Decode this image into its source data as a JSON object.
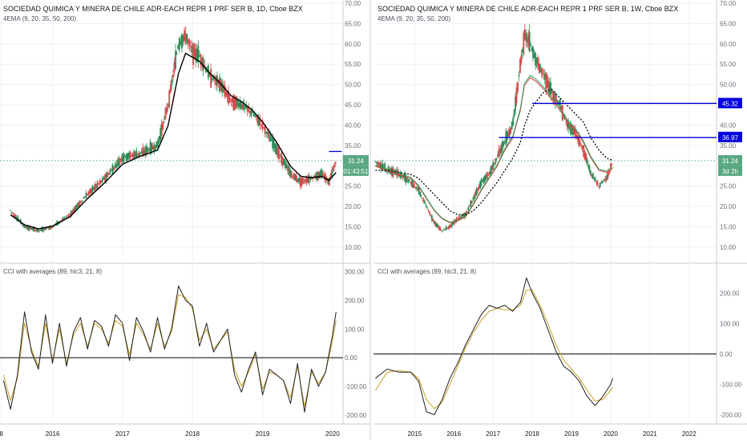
{
  "colors": {
    "bg": "#ffffff",
    "grid": "#eef0f3",
    "axis_text": "#6a6d78",
    "divider": "#c9ccd3",
    "candle_up": "#2e8b57",
    "candle_down": "#d14b4b",
    "ema_black": "#000000",
    "ema_red": "#e0433f",
    "ema_green": "#2aa05a",
    "ema_orange": "#f0a030",
    "cci_main": "#222222",
    "cci_avg": "#c9a227",
    "level_blue": "#0000dd",
    "label_green": "#5aa883",
    "zero_line": "#000000"
  },
  "panes": {
    "left": {
      "title": "SOCIEDAD QUIMICA Y MINERA DE CHILE ADR-EACH REPR 1 PRF SER B, 1D, Cboe BZX",
      "indicator": "4EMA (9, 20, 35, 50, 200)",
      "cci_title": "CCI with averages (89, hlc3, 21, 8)",
      "price_label": "31.24",
      "timer_label": "01:43:51"
    },
    "right": {
      "title": "SOCIEDAD QUIMICA Y MINERA DE CHILE ADR-EACH REPR 1 PRF SER B, 1W, Cboe BZX",
      "indicator": "4EMA (9, 20, 35, 50, 200)",
      "cci_title": "CCI with averages (89, hlc3, 21, 8)",
      "price_label": "31.24",
      "timer_label": "3d 2h",
      "level_labels": [
        "45.32",
        "36.97"
      ]
    }
  },
  "axes": {
    "price_ticks": [
      "10.00",
      "15.00",
      "20.00",
      "25.00",
      "30.00",
      "35.00",
      "40.00",
      "45.00",
      "50.00",
      "55.00",
      "60.00",
      "65.00",
      "70.00"
    ],
    "cci_ticks": [
      "-200.00",
      "-100.00",
      "0.00",
      "100.00",
      "200.00",
      "300.00"
    ],
    "cci_ticks_right": [
      "-200.00",
      "-100.00",
      "0.00",
      "100.00",
      "200.00"
    ],
    "left_x_ticks": [
      "8",
      "2016",
      "2017",
      "2018",
      "2019",
      "2020"
    ],
    "right_x_ticks": [
      "2015",
      "2016",
      "2017",
      "2018",
      "2019",
      "2020",
      "2021",
      "2022"
    ]
  },
  "chart_data": [
    {
      "type": "line",
      "pane": "left-price",
      "title": "SOCIEDAD QUIMICA Y MINERA DE CHILE ADR-EACH REPR 1 PRF SER B, 1D, Cboe BZX",
      "xlabel": "",
      "ylabel": "",
      "ylim": [
        7,
        70
      ],
      "x": [
        2015.4,
        2015.6,
        2015.8,
        2016.0,
        2016.25,
        2016.5,
        2016.75,
        2017.0,
        2017.25,
        2017.5,
        2017.65,
        2017.8,
        2017.9,
        2018.0,
        2018.1,
        2018.25,
        2018.4,
        2018.55,
        2018.7,
        2018.85,
        2019.0,
        2019.2,
        2019.4,
        2019.55,
        2019.7,
        2019.85,
        2019.95,
        2020.0,
        2020.05
      ],
      "series": [
        {
          "values": [
            19,
            15,
            14,
            15,
            18,
            23,
            27,
            32,
            33,
            35,
            45,
            60,
            62,
            58,
            57,
            52,
            50,
            46,
            45,
            43,
            40,
            34,
            28,
            26,
            27,
            28,
            26,
            29,
            31
          ]
        },
        {
          "values": [
            18,
            15.5,
            14.5,
            15.2,
            17.5,
            22,
            26,
            30.5,
            32.5,
            34,
            40,
            53,
            58,
            57,
            56,
            53,
            50.5,
            47.5,
            46,
            44,
            41,
            36,
            30,
            27.5,
            27.2,
            27.5,
            26.5,
            27.5,
            28.5
          ]
        }
      ]
    },
    {
      "type": "line",
      "pane": "left-cci",
      "title": "CCI with averages (89, hlc3, 21, 8)",
      "xlabel": "",
      "ylabel": "",
      "ylim": [
        -220,
        310
      ],
      "x": [
        2015.3,
        2015.4,
        2015.5,
        2015.6,
        2015.7,
        2015.8,
        2015.9,
        2016.0,
        2016.1,
        2016.2,
        2016.3,
        2016.4,
        2016.5,
        2016.6,
        2016.7,
        2016.8,
        2016.9,
        2017.0,
        2017.1,
        2017.2,
        2017.3,
        2017.4,
        2017.5,
        2017.6,
        2017.7,
        2017.8,
        2017.9,
        2018.0,
        2018.1,
        2018.2,
        2018.3,
        2018.4,
        2018.5,
        2018.6,
        2018.7,
        2018.8,
        2018.9,
        2019.0,
        2019.1,
        2019.2,
        2019.3,
        2019.4,
        2019.5,
        2019.6,
        2019.7,
        2019.8,
        2019.9,
        2020.0,
        2020.05
      ],
      "series": [
        {
          "values": [
            -80,
            -180,
            -60,
            160,
            20,
            -40,
            150,
            -20,
            120,
            -30,
            90,
            140,
            30,
            130,
            110,
            40,
            150,
            120,
            -10,
            140,
            90,
            20,
            140,
            30,
            100,
            250,
            200,
            180,
            40,
            120,
            20,
            60,
            100,
            -60,
            -120,
            -40,
            20,
            -130,
            -40,
            -60,
            -80,
            -160,
            -20,
            -190,
            -40,
            -100,
            -50,
            80,
            160
          ]
        },
        {
          "values": [
            -60,
            -150,
            -70,
            120,
            30,
            -30,
            120,
            -10,
            100,
            -20,
            80,
            120,
            40,
            120,
            100,
            50,
            130,
            110,
            10,
            120,
            80,
            30,
            120,
            40,
            90,
            220,
            210,
            170,
            60,
            100,
            30,
            60,
            90,
            -40,
            -100,
            -50,
            10,
            -110,
            -50,
            -60,
            -80,
            -140,
            -30,
            -170,
            -50,
            -90,
            -50,
            60,
            130
          ]
        }
      ]
    },
    {
      "type": "line",
      "pane": "right-price",
      "title": "SOCIEDAD QUIMICA Y MINERA DE CHILE ADR-EACH REPR 1 PRF SER B, 1W, Cboe BZX",
      "xlabel": "",
      "ylabel": "",
      "ylim": [
        7,
        70
      ],
      "x": [
        2014.0,
        2014.3,
        2014.6,
        2014.9,
        2015.1,
        2015.3,
        2015.5,
        2015.7,
        2015.9,
        2016.1,
        2016.3,
        2016.5,
        2016.7,
        2016.9,
        2017.1,
        2017.3,
        2017.5,
        2017.7,
        2017.8,
        2017.95,
        2018.1,
        2018.3,
        2018.5,
        2018.7,
        2018.9,
        2019.1,
        2019.3,
        2019.5,
        2019.7,
        2019.9,
        2020.05
      ],
      "series": [
        {
          "values": [
            31,
            29,
            28,
            26,
            24,
            20,
            16,
            14,
            15,
            17,
            18,
            22,
            26,
            28,
            32,
            36,
            40,
            55,
            62,
            60,
            56,
            52,
            48,
            45,
            40,
            38,
            34,
            28,
            25,
            27,
            31
          ]
        },
        {
          "values": [
            30,
            29,
            28,
            27,
            25,
            22,
            19,
            17,
            16,
            16.5,
            17.5,
            20.5,
            24,
            27,
            30,
            34,
            37,
            44,
            50,
            52,
            51,
            49,
            46.5,
            44,
            41,
            39,
            36,
            32,
            29,
            28.5,
            29.5
          ]
        },
        {
          "values": [
            29,
            29,
            28.5,
            28,
            27,
            25,
            23,
            21,
            19,
            18,
            18,
            19,
            21,
            23.5,
            26,
            29,
            32,
            36,
            40,
            44,
            46,
            48.5,
            49,
            47,
            45,
            43,
            41,
            37,
            34,
            32,
            31.5
          ]
        }
      ],
      "annotations": [
        {
          "type": "hline",
          "y": 45.32,
          "label": "45.32"
        },
        {
          "type": "hline",
          "y": 36.97,
          "label": "36.97"
        }
      ]
    },
    {
      "type": "line",
      "pane": "right-cci",
      "title": "CCI with averages (89, hlc3, 21, 8)",
      "xlabel": "",
      "ylabel": "",
      "ylim": [
        -220,
        280
      ],
      "x": [
        2014.0,
        2014.3,
        2014.6,
        2014.9,
        2015.1,
        2015.3,
        2015.5,
        2015.7,
        2015.9,
        2016.1,
        2016.3,
        2016.5,
        2016.7,
        2016.9,
        2017.1,
        2017.3,
        2017.5,
        2017.7,
        2017.85,
        2018.0,
        2018.2,
        2018.4,
        2018.6,
        2018.8,
        2019.0,
        2019.2,
        2019.4,
        2019.6,
        2019.8,
        2020.0,
        2020.05
      ],
      "series": [
        {
          "values": [
            -80,
            -50,
            -60,
            -60,
            -90,
            -190,
            -200,
            -150,
            -80,
            -30,
            30,
            80,
            130,
            160,
            150,
            160,
            140,
            170,
            250,
            200,
            150,
            80,
            10,
            -40,
            -60,
            -90,
            -140,
            -170,
            -140,
            -100,
            -80
          ]
        },
        {
          "values": [
            -120,
            -60,
            -55,
            -60,
            -80,
            -150,
            -180,
            -160,
            -100,
            -40,
            20,
            70,
            110,
            140,
            150,
            145,
            145,
            160,
            210,
            210,
            160,
            100,
            30,
            -20,
            -50,
            -80,
            -120,
            -155,
            -150,
            -120,
            -110
          ]
        }
      ]
    }
  ]
}
